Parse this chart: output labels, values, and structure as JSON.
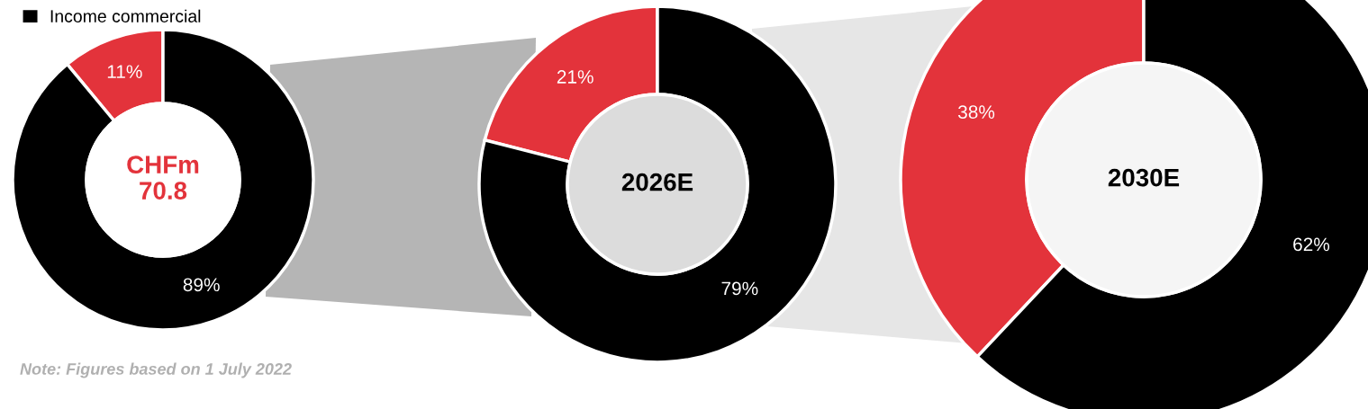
{
  "chart_data": [
    {
      "type": "donut",
      "categories": [
        null,
        "Income commercial"
      ],
      "values": [
        11,
        89
      ],
      "colors": [
        "#e3333b",
        "#000000"
      ],
      "value_labels": [
        "11%",
        "89%"
      ],
      "legend": "top left",
      "annotations": [
        "CHFm\n70.8",
        "Note: Figures based on 1 July 2022"
      ]
    },
    {
      "type": "donut",
      "categories": [
        null,
        null
      ],
      "values": [
        21,
        79
      ],
      "colors": [
        "#e3333b",
        "#000000"
      ],
      "value_labels": [
        "21%",
        "79%"
      ],
      "annotations": [
        "2026E"
      ]
    },
    {
      "type": "donut",
      "categories": [
        null,
        null
      ],
      "values": [
        38,
        62
      ],
      "colors": [
        "#e3333b",
        "#000000"
      ],
      "value_labels": [
        "38%",
        "62%"
      ],
      "annotations": [
        "2030E"
      ]
    }
  ]
}
